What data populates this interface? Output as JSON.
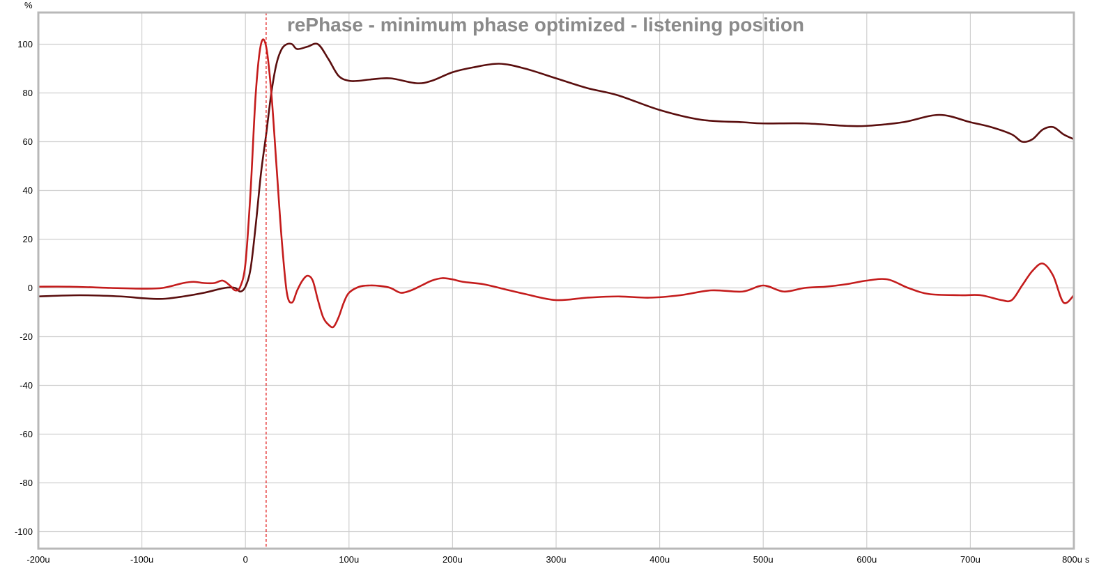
{
  "chart_data": {
    "type": "line",
    "title": "rePhase - minimum phase optimized - listening position",
    "ylabel": "%",
    "xunit": "s",
    "xlim": [
      -0.0002,
      0.0008
    ],
    "ylim": [
      -107,
      113
    ],
    "grid": true,
    "x_ticks": [
      {
        "value": -0.0002,
        "label": "-200u"
      },
      {
        "value": -0.0001,
        "label": "-100u"
      },
      {
        "value": 0,
        "label": "0"
      },
      {
        "value": 0.0001,
        "label": "100u"
      },
      {
        "value": 0.0002,
        "label": "200u"
      },
      {
        "value": 0.0003,
        "label": "300u"
      },
      {
        "value": 0.0004,
        "label": "400u"
      },
      {
        "value": 0.0005,
        "label": "500u"
      },
      {
        "value": 0.0006,
        "label": "600u"
      },
      {
        "value": 0.0007,
        "label": "700u"
      },
      {
        "value": 0.0008,
        "label": "800u"
      }
    ],
    "y_ticks": [
      {
        "value": 100,
        "label": "100"
      },
      {
        "value": 80,
        "label": "80"
      },
      {
        "value": 60,
        "label": "60"
      },
      {
        "value": 40,
        "label": "40"
      },
      {
        "value": 20,
        "label": "20"
      },
      {
        "value": 0,
        "label": "0"
      },
      {
        "value": -20,
        "label": "-20"
      },
      {
        "value": -40,
        "label": "-40"
      },
      {
        "value": -60,
        "label": "-60"
      },
      {
        "value": -80,
        "label": "-80"
      },
      {
        "value": -100,
        "label": "-100"
      }
    ],
    "cursor_x": 2e-05,
    "series": [
      {
        "color": "#5a0e0e",
        "x": [
          -0.0002,
          -0.00016,
          -0.00012,
          -0.0001,
          -8e-05,
          -6e-05,
          -4e-05,
          -2e-05,
          -1e-05,
          -5e-06,
          0,
          5e-06,
          1e-05,
          1.5e-05,
          2e-05,
          2.5e-05,
          3e-05,
          3.5e-05,
          4e-05,
          4.5e-05,
          5e-05,
          6e-05,
          7e-05,
          8e-05,
          9e-05,
          0.0001,
          0.00011,
          0.00012,
          0.00014,
          0.000165,
          0.00018,
          0.0002,
          0.00022,
          0.000245,
          0.00027,
          0.0003,
          0.00033,
          0.00036,
          0.0004,
          0.00044,
          0.00048,
          0.0005,
          0.00054,
          0.00058,
          0.0006,
          0.000635,
          0.00067,
          0.0007,
          0.00072,
          0.00074,
          0.00075,
          0.00076,
          0.00077,
          0.00078,
          0.00079,
          0.0008
        ],
        "y": [
          -3.5,
          -3,
          -3.5,
          -4.2,
          -4.5,
          -3.5,
          -2,
          0,
          0,
          -1.5,
          0.5,
          8,
          26,
          47,
          63,
          80,
          92,
          98,
          100,
          100,
          98,
          99,
          100,
          94,
          87,
          85,
          85,
          85.5,
          86,
          84,
          85,
          88.5,
          90.5,
          92,
          90,
          86,
          82,
          79,
          73,
          69,
          68,
          67.5,
          67.5,
          66.5,
          66.5,
          68,
          71,
          68,
          66,
          63,
          60,
          61,
          65,
          66,
          63,
          61
        ]
      },
      {
        "color": "#c41c1c",
        "x": [
          -0.0002,
          -0.00017,
          -0.00013,
          -0.0001,
          -8e-05,
          -6e-05,
          -5e-05,
          -4e-05,
          -3e-05,
          -2.2e-05,
          -1.5e-05,
          -1e-05,
          -5e-06,
          0,
          5e-06,
          1e-05,
          1.5e-05,
          2e-05,
          2.5e-05,
          3e-05,
          3.5e-05,
          4e-05,
          4.5e-05,
          5e-05,
          5.5e-05,
          6e-05,
          6.5e-05,
          7e-05,
          7.5e-05,
          8e-05,
          8.5e-05,
          9e-05,
          9.5e-05,
          0.0001,
          0.00011,
          0.00012,
          0.00013,
          0.00014,
          0.00015,
          0.00016,
          0.00017,
          0.00018,
          0.00019,
          0.0002,
          0.00021,
          0.00023,
          0.00025,
          0.00027,
          0.0003,
          0.00033,
          0.00036,
          0.00039,
          0.00042,
          0.00045,
          0.00048,
          0.0005,
          0.00052,
          0.00054,
          0.00056,
          0.00058,
          0.0006,
          0.00062,
          0.00064,
          0.00066,
          0.00069,
          0.00071,
          0.00073,
          0.00074,
          0.00075,
          0.00076,
          0.00077,
          0.00078,
          0.00079,
          0.0008
        ],
        "y": [
          0.5,
          0.5,
          0,
          -0.3,
          0,
          2,
          2.5,
          2,
          2,
          3,
          1,
          -1,
          0.5,
          10,
          40,
          80,
          100,
          99,
          80,
          50,
          20,
          -2,
          -6,
          -1,
          3,
          5,
          3,
          -5,
          -12,
          -15,
          -16,
          -12,
          -6,
          -2,
          0.5,
          1,
          0.8,
          0,
          -2,
          -1,
          1,
          3,
          4,
          3.5,
          2.5,
          1.5,
          -0.5,
          -2.5,
          -5,
          -4,
          -3.5,
          -4,
          -3,
          -1,
          -1.5,
          1,
          -1.5,
          0,
          0.5,
          1.5,
          3,
          3.5,
          0,
          -2.5,
          -3,
          -3,
          -5,
          -5,
          1,
          7,
          10,
          5,
          -6,
          -3
        ]
      }
    ]
  }
}
